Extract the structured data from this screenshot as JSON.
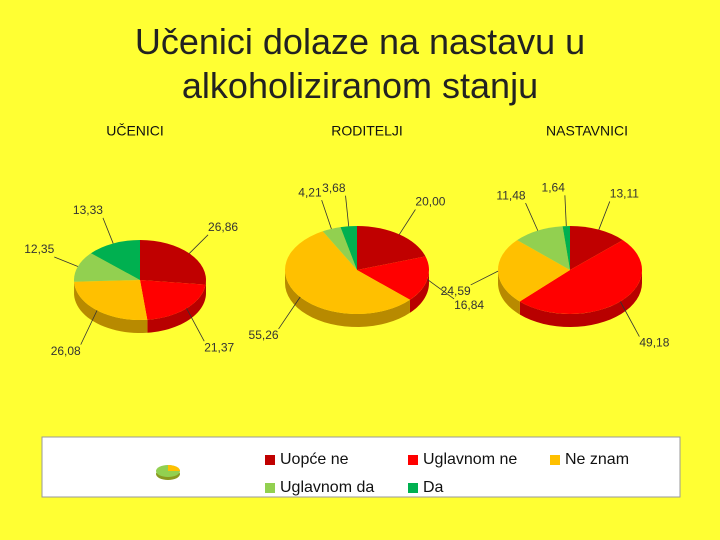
{
  "title": "Učenici dolaze na nastavu u alkoholiziranom stanju",
  "chart_data": [
    {
      "type": "pie",
      "title": "UČENICI",
      "categories": [
        "Uopće ne",
        "Uglavnom ne",
        "Ne znam",
        "Uglavnom da",
        "Da"
      ],
      "colors": [
        "#c00000",
        "#ff0000",
        "#ffc000",
        "#92d050",
        "#00b050"
      ],
      "values": [
        26.86,
        21.37,
        26.08,
        12.35,
        13.33
      ],
      "value_labels": [
        "26,86",
        "21,37",
        "26,08",
        "12,35",
        "13,33"
      ]
    },
    {
      "type": "pie",
      "title": "RODITELJI",
      "categories": [
        "Uopće ne",
        "Uglavnom ne",
        "Ne znam",
        "Uglavnom da",
        "Da"
      ],
      "colors": [
        "#c00000",
        "#ff0000",
        "#ffc000",
        "#92d050",
        "#00b050"
      ],
      "values": [
        20.0,
        16.84,
        55.26,
        4.21,
        3.68
      ],
      "value_labels": [
        "20,00",
        "16,84",
        "55,26",
        "4,21",
        "3,68"
      ]
    },
    {
      "type": "pie",
      "title": "NASTAVNICI",
      "categories": [
        "Uopće ne",
        "Uglavnom ne",
        "Ne znam",
        "Uglavnom da",
        "Da"
      ],
      "colors": [
        "#c00000",
        "#ff0000",
        "#ffc000",
        "#92d050",
        "#00b050"
      ],
      "values": [
        13.11,
        49.18,
        24.59,
        11.48,
        1.64
      ],
      "value_labels": [
        "13,11",
        "49,18",
        "24,59",
        "11,48",
        "1,64"
      ]
    }
  ]
}
